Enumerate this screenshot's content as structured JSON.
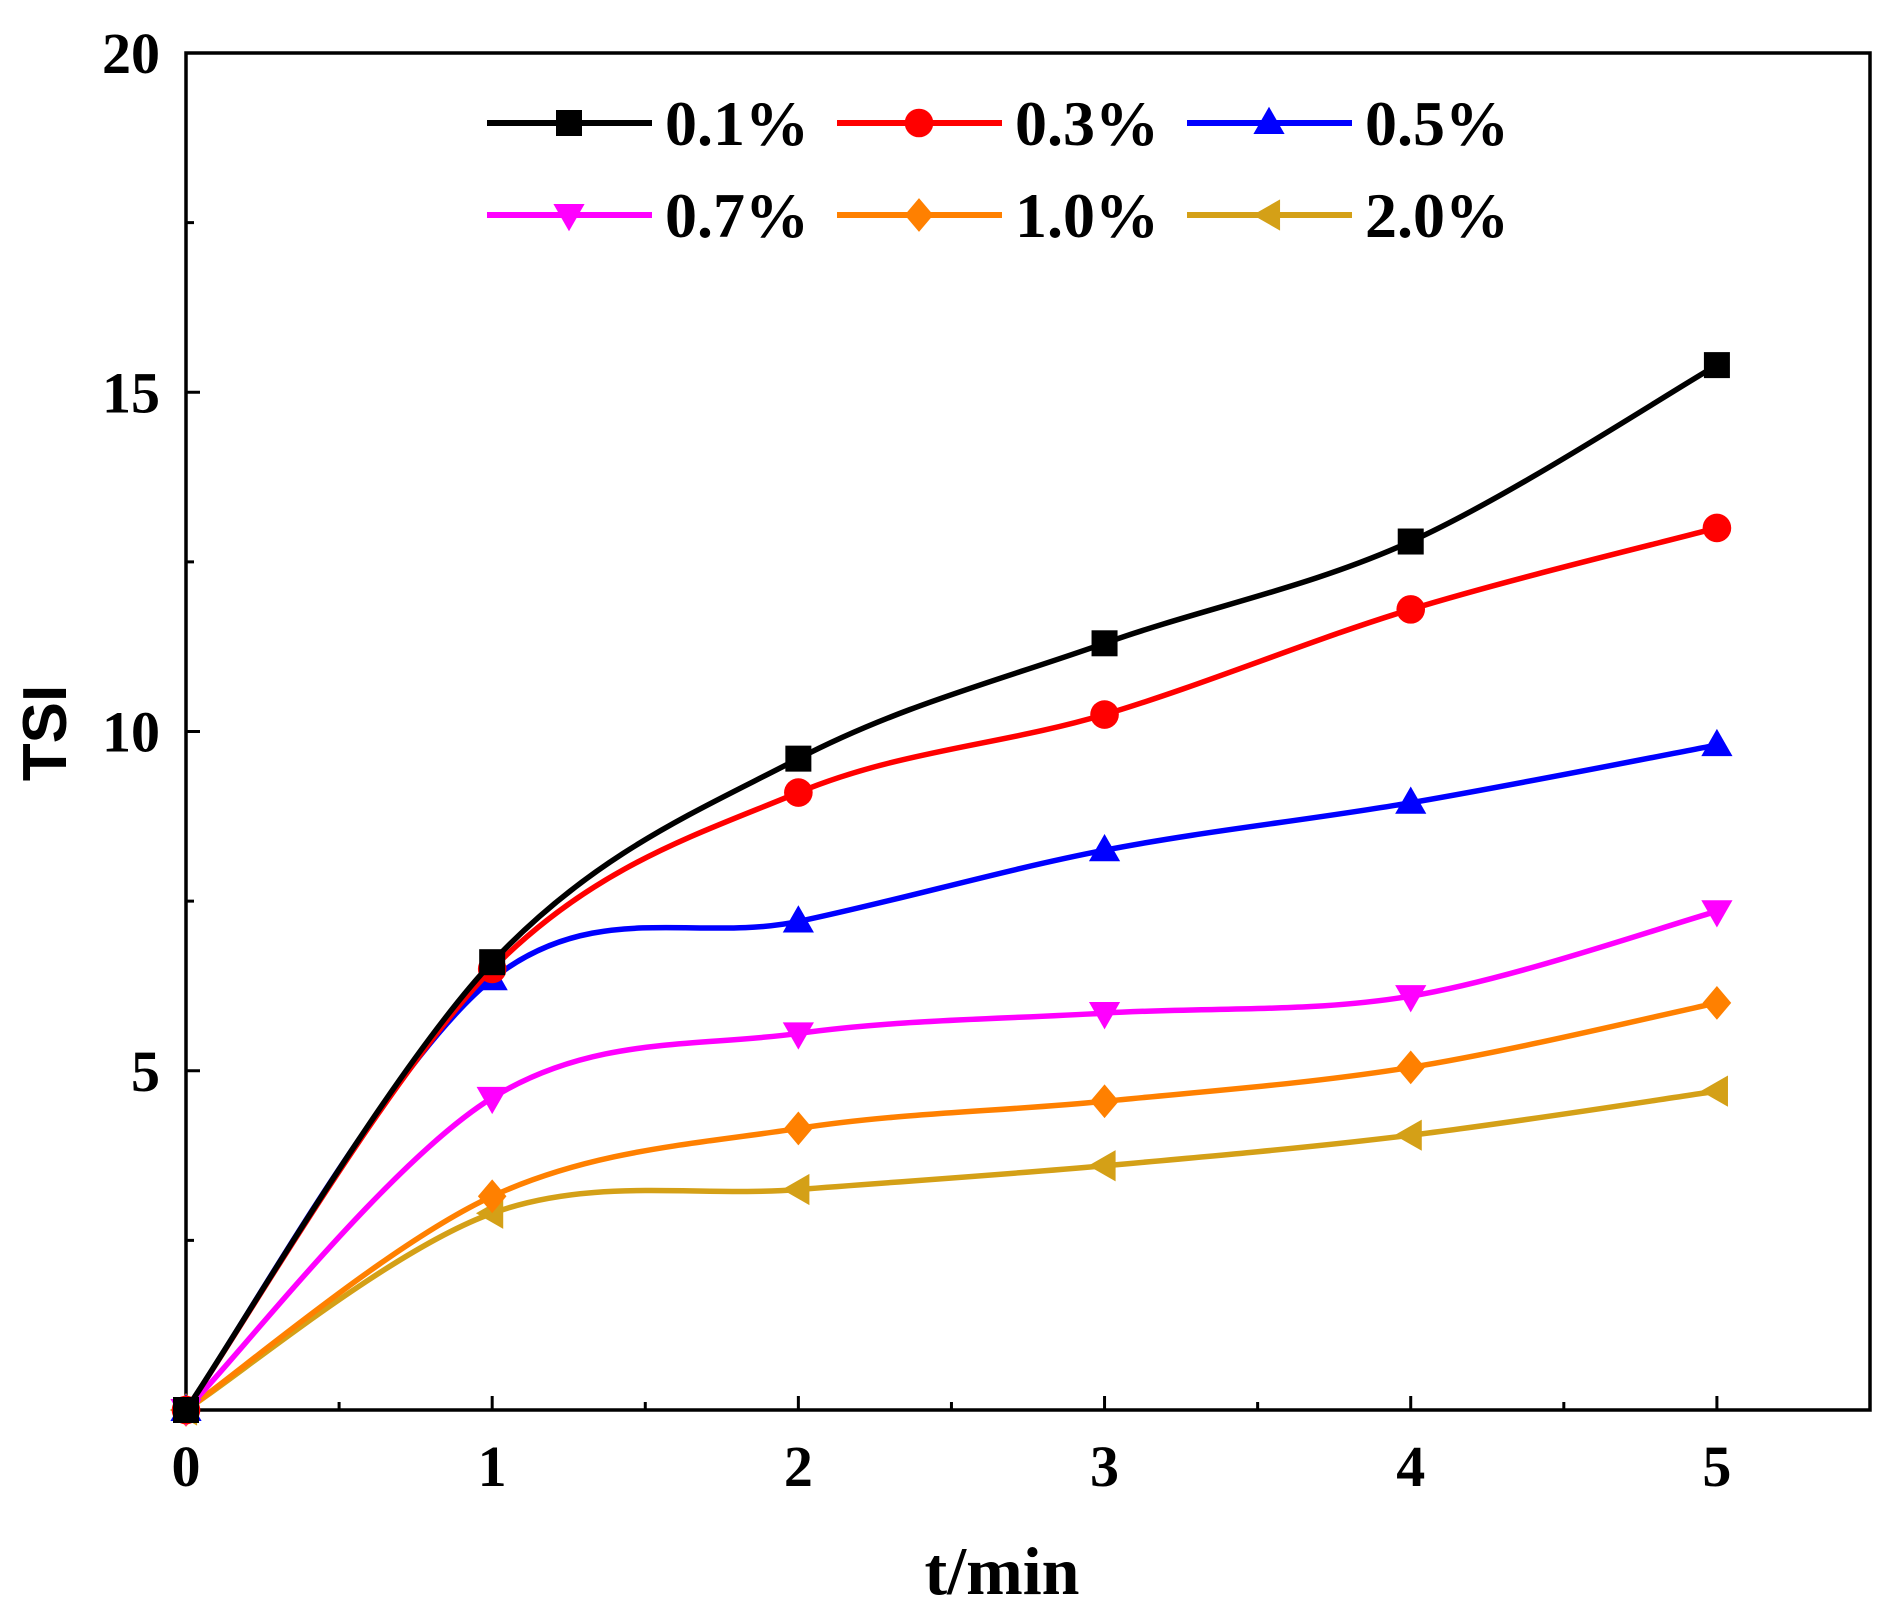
{
  "chart_data": {
    "type": "line",
    "title": "",
    "xlabel": "t/min",
    "ylabel": "TSI",
    "x": [
      0,
      1,
      2,
      3,
      4,
      5
    ],
    "xlim": [
      0,
      5.5
    ],
    "ylim": [
      0,
      20
    ],
    "xticks": [
      0,
      1,
      2,
      3,
      4,
      5
    ],
    "xtick_labels": [
      "0",
      "1",
      "2",
      "3",
      "4",
      "5"
    ],
    "yticks": [
      5,
      10,
      15,
      20
    ],
    "ytick_labels": [
      "5",
      "10",
      "15",
      "20"
    ],
    "grid": false,
    "legend_position": "top",
    "series": [
      {
        "name": "0.1%",
        "color": "#000000",
        "marker": "square",
        "values": [
          0,
          6.6,
          9.6,
          11.3,
          12.8,
          15.4
        ]
      },
      {
        "name": "0.3%",
        "color": "#ff0000",
        "marker": "circle",
        "values": [
          0,
          6.5,
          9.1,
          10.25,
          11.8,
          13.0
        ]
      },
      {
        "name": "0.5%",
        "color": "#0000ff",
        "marker": "triangle-up",
        "values": [
          0,
          6.35,
          7.2,
          8.25,
          8.95,
          9.8
        ]
      },
      {
        "name": "0.7%",
        "color": "#ff00ff",
        "marker": "triangle-down",
        "values": [
          0,
          4.6,
          5.55,
          5.85,
          6.1,
          7.35
        ]
      },
      {
        "name": "1.0%",
        "color": "#ff8000",
        "marker": "diamond",
        "values": [
          0,
          3.15,
          4.15,
          4.55,
          5.05,
          6.0
        ]
      },
      {
        "name": "2.0%",
        "color": "#d4a017",
        "marker": "triangle-left",
        "values": [
          0,
          2.9,
          3.25,
          3.6,
          4.05,
          4.7
        ]
      }
    ]
  }
}
